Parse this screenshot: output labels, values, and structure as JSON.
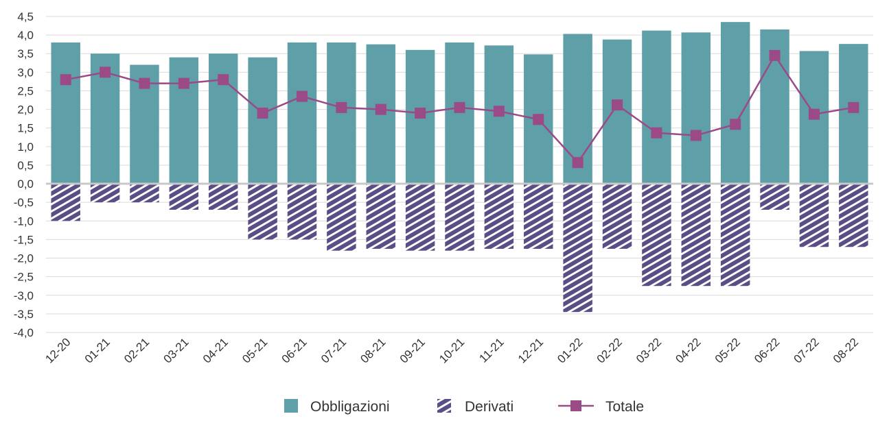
{
  "chart_data": {
    "type": "bar",
    "categories": [
      "12-20",
      "01-21",
      "02-21",
      "03-21",
      "04-21",
      "05-21",
      "06-21",
      "07-21",
      "08-21",
      "09-21",
      "10-21",
      "11-21",
      "12-21",
      "01-22",
      "02-22",
      "03-22",
      "04-22",
      "05-22",
      "06-22",
      "07-22",
      "08-22"
    ],
    "series": [
      {
        "name": "Obbligazioni",
        "kind": "bar",
        "color": "#5f9fa8",
        "values": [
          3.8,
          3.5,
          3.2,
          3.4,
          3.5,
          3.4,
          3.8,
          3.8,
          3.75,
          3.6,
          3.8,
          3.72,
          3.48,
          4.03,
          3.88,
          4.12,
          4.07,
          4.35,
          4.15,
          3.57,
          3.76
        ]
      },
      {
        "name": "Derivati",
        "kind": "bar-hatched",
        "color": "#5b4e86",
        "values": [
          -1.0,
          -0.5,
          -0.5,
          -0.7,
          -0.7,
          -1.5,
          -1.5,
          -1.8,
          -1.75,
          -1.8,
          -1.8,
          -1.75,
          -1.75,
          -3.45,
          -1.75,
          -2.75,
          -2.75,
          -2.75,
          -0.7,
          -1.7,
          -1.7
        ]
      },
      {
        "name": "Totale",
        "kind": "line",
        "color": "#9b4a88",
        "values": [
          2.8,
          3.0,
          2.7,
          2.7,
          2.8,
          1.9,
          2.35,
          2.05,
          2.0,
          1.9,
          2.05,
          1.95,
          1.73,
          0.57,
          2.12,
          1.37,
          1.3,
          1.6,
          3.45,
          1.87,
          2.05
        ]
      }
    ],
    "y_ticks": [
      "4,5",
      "4,0",
      "3,5",
      "3,0",
      "2,5",
      "2,0",
      "1,5",
      "1,0",
      "0,5",
      "0,0",
      "-0,5",
      "-1,0",
      "-1,5",
      "-2,0",
      "-2,5",
      "-3,0",
      "-3,5",
      "-4,0"
    ],
    "ylim": [
      -4.0,
      4.5
    ],
    "grid": true,
    "legend_position": "bottom-center"
  }
}
